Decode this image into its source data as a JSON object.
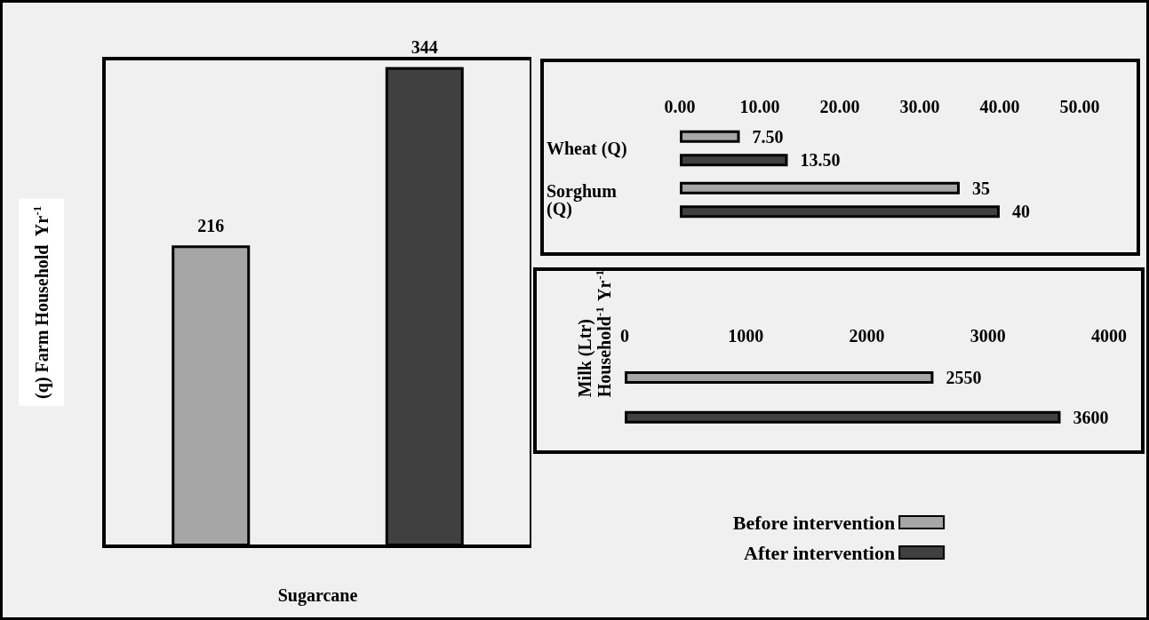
{
  "chart_data": [
    {
      "type": "bar",
      "ylabel": "(q) Farm Household  Yr$^{-1}$",
      "xlabel": "Sugarcane",
      "categories": [
        null,
        null
      ],
      "data_labels": true,
      "series": [
        {
          "colors": [
            "#a6a6a6",
            "#404040"
          ],
          "values": [
            216,
            344
          ]
        }
      ]
    },
    {
      "type": "bar",
      "orientation": "horizontal",
      "categories": [
        "Wheat (Q)",
        "Sorghum (Q)"
      ],
      "xlim": [
        0,
        50
      ],
      "xticks": [
        {
          "value": 0,
          "label": "0.00"
        },
        {
          "value": 10,
          "label": "10.00"
        },
        {
          "value": 20,
          "label": "20.00"
        },
        {
          "value": 30,
          "label": "30.00"
        },
        {
          "value": 40,
          "label": "40.00"
        },
        {
          "value": 50,
          "label": "50.00"
        }
      ],
      "series": [
        {
          "color": "#a6a6a6",
          "values": [
            7.5,
            35
          ],
          "value_labels": [
            "7.50",
            "35"
          ]
        },
        {
          "color": "#404040",
          "values": [
            13.5,
            40
          ],
          "value_labels": [
            "13.50",
            "40"
          ]
        }
      ]
    },
    {
      "type": "bar",
      "orientation": "horizontal",
      "categories": [
        "Milk (Ltr) Household$^{-1}$ Yr$^{-1}$"
      ],
      "xlim": [
        0,
        4000
      ],
      "xticks": [
        0,
        1000,
        2000,
        3000,
        4000
      ],
      "data_labels": true,
      "legend": "bottom",
      "series": [
        {
          "name": "Before intervention",
          "color": "#a6a6a6",
          "values": [
            2550
          ]
        },
        {
          "name": "After intervention",
          "color": "#404040",
          "values": [
            3600
          ]
        }
      ]
    }
  ]
}
